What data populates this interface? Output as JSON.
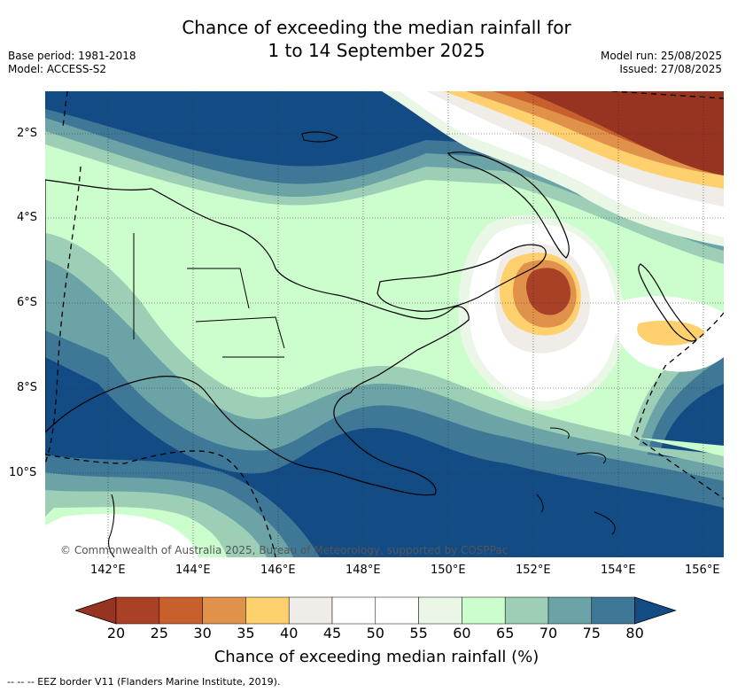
{
  "title": {
    "line1": "Chance of exceeding the median rainfall for",
    "line2": "1 to 14 September 2025"
  },
  "meta_left": {
    "base_period": "Base period: 1981-2018",
    "model": "Model: ACCESS-S2"
  },
  "meta_right": {
    "model_run": "Model run: 25/08/2025",
    "issued": "Issued: 27/08/2025"
  },
  "map": {
    "lat_labels": [
      "2°S",
      "4°S",
      "6°S",
      "8°S",
      "10°S"
    ],
    "lon_labels": [
      "142°E",
      "144°E",
      "146°E",
      "148°E",
      "150°E",
      "152°E",
      "154°E",
      "156°E"
    ],
    "copyright": "© Commonwealth of Australia 2025, Bureau of Meteorology, supported by COSPPac"
  },
  "colorbar": {
    "title": "Chance of exceeding median rainfall (%)",
    "labels": [
      "20",
      "25",
      "30",
      "35",
      "40",
      "45",
      "50",
      "55",
      "60",
      "65",
      "70",
      "75",
      "80"
    ],
    "colors": [
      "#a84125",
      "#c8602e",
      "#e0924a",
      "#fed06e",
      "#f0ede8",
      "#ffffff",
      "#ffffff",
      "#eaf6e6",
      "#ccfdcd",
      "#9ccfb6",
      "#6ba3a6",
      "#3f7797",
      "#134b85"
    ],
    "under_color": "#963421",
    "over_color": "#134b85"
  },
  "legend_note": "--  --  -- EEZ border V11 (Flanders Marine Institute, 2019)."
}
